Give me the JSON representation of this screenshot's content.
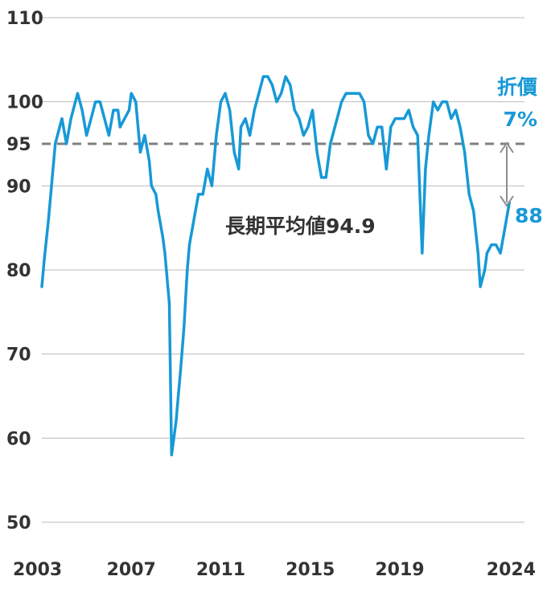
{
  "colors": {
    "line": "#1799d6",
    "grid": "#bbbbbb",
    "avg_line": "#808080",
    "text": "#333333",
    "arrow": "#8c8c8c"
  },
  "chart_data": {
    "type": "line",
    "title": "",
    "xlabel": "",
    "ylabel": "",
    "ylim": [
      50,
      110
    ],
    "xlim": [
      2003,
      2024
    ],
    "grid": true,
    "y_ticks": [
      "110",
      "100",
      "95",
      "90",
      "80",
      "70",
      "60",
      "50"
    ],
    "x_ticks": [
      "2003",
      "2007",
      "2011",
      "2015",
      "2019",
      "2024"
    ],
    "long_term_average": {
      "label": "長期平均値94.9",
      "value": 94.9
    },
    "latest": {
      "label": "88",
      "value": 88
    },
    "gap_annotation": {
      "line1": "折價",
      "line2": "7%"
    },
    "series": [
      {
        "x": [
          2003.0,
          2003.1,
          2003.3,
          2003.5,
          2003.6,
          2003.8,
          2003.9,
          2004.1,
          2004.3,
          2004.5,
          2004.6,
          2004.8,
          2005.0,
          2005.2,
          2005.4,
          2005.6,
          2005.8,
          2006.0,
          2006.2,
          2006.4,
          2006.5,
          2006.7,
          2006.9,
          2007.0,
          2007.2,
          2007.4,
          2007.6,
          2007.8,
          2007.9,
          2008.1,
          2008.2,
          2008.4,
          2008.5,
          2008.7,
          2008.8,
          2009.0,
          2009.1,
          2009.2,
          2009.35,
          2009.5,
          2009.6,
          2009.8,
          2010.0,
          2010.2,
          2010.4,
          2010.6,
          2010.8,
          2011.0,
          2011.2,
          2011.4,
          2011.6,
          2011.8,
          2011.9,
          2012.1,
          2012.3,
          2012.5,
          2012.7,
          2012.9,
          2013.1,
          2013.3,
          2013.5,
          2013.7,
          2013.9,
          2014.1,
          2014.3,
          2014.5,
          2014.7,
          2014.9,
          2015.1,
          2015.3,
          2015.5,
          2015.7,
          2015.9,
          2016.0,
          2016.2,
          2016.4,
          2016.6,
          2016.8,
          2017.0,
          2017.2,
          2017.4,
          2017.6,
          2017.8,
          2018.0,
          2018.2,
          2018.4,
          2018.6,
          2018.8,
          2019.0,
          2019.2,
          2019.4,
          2019.6,
          2019.8,
          2020.0,
          2020.15,
          2020.3,
          2020.5,
          2020.7,
          2020.9,
          2021.1,
          2021.3,
          2021.5,
          2021.7,
          2021.9,
          2022.1,
          2022.3,
          2022.5,
          2022.6,
          2022.8,
          2022.9,
          2023.1,
          2023.3,
          2023.5,
          2023.7,
          2023.9
        ],
        "y": [
          78,
          81,
          86,
          92,
          95,
          97,
          98,
          95,
          98,
          100,
          101,
          99,
          96,
          98,
          100,
          100,
          98,
          96,
          99,
          99,
          97,
          98,
          99,
          101,
          100,
          94,
          96,
          93,
          90,
          89,
          87,
          84,
          82,
          76,
          58,
          62,
          65,
          68,
          73,
          80,
          83,
          86,
          89,
          89,
          92,
          90,
          96,
          100,
          101,
          99,
          94,
          92,
          97,
          98,
          96,
          99,
          101,
          103,
          103,
          102,
          100,
          101,
          103,
          102,
          99,
          98,
          96,
          97,
          99,
          94,
          91,
          91,
          95,
          96,
          98,
          100,
          101,
          101,
          101,
          101,
          100,
          96,
          95,
          97,
          97,
          92,
          97,
          98,
          98,
          98,
          99,
          97,
          96,
          82,
          92,
          96,
          100,
          99,
          100,
          100,
          98,
          99,
          97,
          94,
          89,
          87,
          82,
          78,
          80,
          82,
          83,
          83,
          82,
          85,
          88
        ]
      }
    ]
  }
}
